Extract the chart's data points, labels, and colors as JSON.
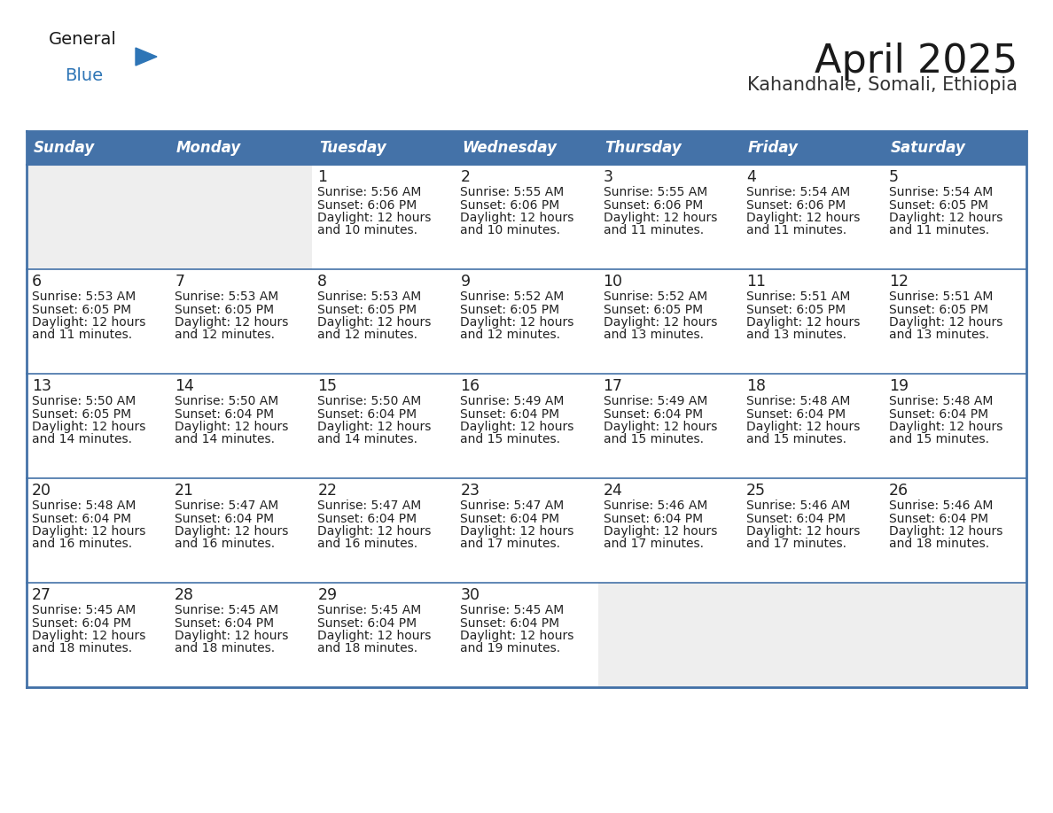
{
  "title": "April 2025",
  "subtitle": "Kahandhale, Somali, Ethiopia",
  "days_of_week": [
    "Sunday",
    "Monday",
    "Tuesday",
    "Wednesday",
    "Thursday",
    "Friday",
    "Saturday"
  ],
  "header_bg": "#4472a8",
  "header_text": "#ffffff",
  "cell_bg_empty": "#eeeeee",
  "cell_bg_normal": "#ffffff",
  "cell_text": "#222222",
  "border_color": "#4472a8",
  "title_color": "#1a1a1a",
  "subtitle_color": "#333333",
  "logo_general_color": "#1a1a1a",
  "logo_blue_color": "#2e75b6",
  "calendar_data": [
    [
      null,
      null,
      {
        "day": 1,
        "sunrise": "5:56 AM",
        "sunset": "6:06 PM",
        "dl1": "Daylight: 12 hours",
        "dl2": "and 10 minutes."
      },
      {
        "day": 2,
        "sunrise": "5:55 AM",
        "sunset": "6:06 PM",
        "dl1": "Daylight: 12 hours",
        "dl2": "and 10 minutes."
      },
      {
        "day": 3,
        "sunrise": "5:55 AM",
        "sunset": "6:06 PM",
        "dl1": "Daylight: 12 hours",
        "dl2": "and 11 minutes."
      },
      {
        "day": 4,
        "sunrise": "5:54 AM",
        "sunset": "6:06 PM",
        "dl1": "Daylight: 12 hours",
        "dl2": "and 11 minutes."
      },
      {
        "day": 5,
        "sunrise": "5:54 AM",
        "sunset": "6:05 PM",
        "dl1": "Daylight: 12 hours",
        "dl2": "and 11 minutes."
      }
    ],
    [
      {
        "day": 6,
        "sunrise": "5:53 AM",
        "sunset": "6:05 PM",
        "dl1": "Daylight: 12 hours",
        "dl2": "and 11 minutes."
      },
      {
        "day": 7,
        "sunrise": "5:53 AM",
        "sunset": "6:05 PM",
        "dl1": "Daylight: 12 hours",
        "dl2": "and 12 minutes."
      },
      {
        "day": 8,
        "sunrise": "5:53 AM",
        "sunset": "6:05 PM",
        "dl1": "Daylight: 12 hours",
        "dl2": "and 12 minutes."
      },
      {
        "day": 9,
        "sunrise": "5:52 AM",
        "sunset": "6:05 PM",
        "dl1": "Daylight: 12 hours",
        "dl2": "and 12 minutes."
      },
      {
        "day": 10,
        "sunrise": "5:52 AM",
        "sunset": "6:05 PM",
        "dl1": "Daylight: 12 hours",
        "dl2": "and 13 minutes."
      },
      {
        "day": 11,
        "sunrise": "5:51 AM",
        "sunset": "6:05 PM",
        "dl1": "Daylight: 12 hours",
        "dl2": "and 13 minutes."
      },
      {
        "day": 12,
        "sunrise": "5:51 AM",
        "sunset": "6:05 PM",
        "dl1": "Daylight: 12 hours",
        "dl2": "and 13 minutes."
      }
    ],
    [
      {
        "day": 13,
        "sunrise": "5:50 AM",
        "sunset": "6:05 PM",
        "dl1": "Daylight: 12 hours",
        "dl2": "and 14 minutes."
      },
      {
        "day": 14,
        "sunrise": "5:50 AM",
        "sunset": "6:04 PM",
        "dl1": "Daylight: 12 hours",
        "dl2": "and 14 minutes."
      },
      {
        "day": 15,
        "sunrise": "5:50 AM",
        "sunset": "6:04 PM",
        "dl1": "Daylight: 12 hours",
        "dl2": "and 14 minutes."
      },
      {
        "day": 16,
        "sunrise": "5:49 AM",
        "sunset": "6:04 PM",
        "dl1": "Daylight: 12 hours",
        "dl2": "and 15 minutes."
      },
      {
        "day": 17,
        "sunrise": "5:49 AM",
        "sunset": "6:04 PM",
        "dl1": "Daylight: 12 hours",
        "dl2": "and 15 minutes."
      },
      {
        "day": 18,
        "sunrise": "5:48 AM",
        "sunset": "6:04 PM",
        "dl1": "Daylight: 12 hours",
        "dl2": "and 15 minutes."
      },
      {
        "day": 19,
        "sunrise": "5:48 AM",
        "sunset": "6:04 PM",
        "dl1": "Daylight: 12 hours",
        "dl2": "and 15 minutes."
      }
    ],
    [
      {
        "day": 20,
        "sunrise": "5:48 AM",
        "sunset": "6:04 PM",
        "dl1": "Daylight: 12 hours",
        "dl2": "and 16 minutes."
      },
      {
        "day": 21,
        "sunrise": "5:47 AM",
        "sunset": "6:04 PM",
        "dl1": "Daylight: 12 hours",
        "dl2": "and 16 minutes."
      },
      {
        "day": 22,
        "sunrise": "5:47 AM",
        "sunset": "6:04 PM",
        "dl1": "Daylight: 12 hours",
        "dl2": "and 16 minutes."
      },
      {
        "day": 23,
        "sunrise": "5:47 AM",
        "sunset": "6:04 PM",
        "dl1": "Daylight: 12 hours",
        "dl2": "and 17 minutes."
      },
      {
        "day": 24,
        "sunrise": "5:46 AM",
        "sunset": "6:04 PM",
        "dl1": "Daylight: 12 hours",
        "dl2": "and 17 minutes."
      },
      {
        "day": 25,
        "sunrise": "5:46 AM",
        "sunset": "6:04 PM",
        "dl1": "Daylight: 12 hours",
        "dl2": "and 17 minutes."
      },
      {
        "day": 26,
        "sunrise": "5:46 AM",
        "sunset": "6:04 PM",
        "dl1": "Daylight: 12 hours",
        "dl2": "and 18 minutes."
      }
    ],
    [
      {
        "day": 27,
        "sunrise": "5:45 AM",
        "sunset": "6:04 PM",
        "dl1": "Daylight: 12 hours",
        "dl2": "and 18 minutes."
      },
      {
        "day": 28,
        "sunrise": "5:45 AM",
        "sunset": "6:04 PM",
        "dl1": "Daylight: 12 hours",
        "dl2": "and 18 minutes."
      },
      {
        "day": 29,
        "sunrise": "5:45 AM",
        "sunset": "6:04 PM",
        "dl1": "Daylight: 12 hours",
        "dl2": "and 18 minutes."
      },
      {
        "day": 30,
        "sunrise": "5:45 AM",
        "sunset": "6:04 PM",
        "dl1": "Daylight: 12 hours",
        "dl2": "and 19 minutes."
      },
      null,
      null,
      null
    ]
  ]
}
